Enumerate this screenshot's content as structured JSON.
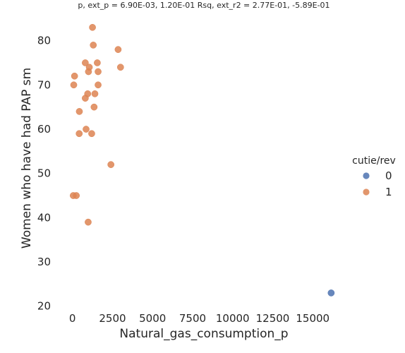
{
  "chart_data": {
    "type": "scatter",
    "title": "p, ext_p = 6.90E-03, 1.20E-01 Rsq, ext_r2 = 2.77E-01, -5.89E-01",
    "xlabel": "Natural_gas_consumption_p",
    "ylabel": "Women who have had PAP sm",
    "xlim": [
      -1000,
      17500
    ],
    "ylim": [
      19,
      86
    ],
    "x_ticks": [
      0,
      2500,
      5000,
      7500,
      10000,
      12500,
      15000
    ],
    "x_tick_labels": [
      "0",
      "2500",
      "5000",
      "7500",
      "10000",
      "12500",
      "15000"
    ],
    "y_ticks": [
      20,
      30,
      40,
      50,
      60,
      70,
      80
    ],
    "y_tick_labels": [
      "20",
      "30",
      "40",
      "50",
      "60",
      "70",
      "80"
    ],
    "grid": false,
    "legend": {
      "title": "cutie/rev",
      "placement": "right",
      "entries": [
        {
          "label": "0",
          "color": "#4c72b0"
        },
        {
          "label": "1",
          "color": "#dd8452"
        }
      ]
    },
    "series": [
      {
        "name": "0",
        "color": "#4c72b0",
        "points": [
          [
            16150,
            23
          ]
        ]
      },
      {
        "name": "1",
        "color": "#dd8452",
        "points": [
          [
            1250,
            83
          ],
          [
            2850,
            78
          ],
          [
            1300,
            79
          ],
          [
            3000,
            74
          ],
          [
            800,
            75
          ],
          [
            1550,
            75
          ],
          [
            1050,
            74
          ],
          [
            1000,
            73
          ],
          [
            1600,
            73
          ],
          [
            130,
            72
          ],
          [
            80,
            70
          ],
          [
            1600,
            70
          ],
          [
            950,
            68
          ],
          [
            1400,
            68
          ],
          [
            800,
            67
          ],
          [
            1350,
            65
          ],
          [
            430,
            64
          ],
          [
            850,
            60
          ],
          [
            420,
            59
          ],
          [
            1200,
            59
          ],
          [
            2400,
            52
          ],
          [
            50,
            45
          ],
          [
            240,
            45
          ],
          [
            980,
            39
          ]
        ]
      }
    ]
  }
}
